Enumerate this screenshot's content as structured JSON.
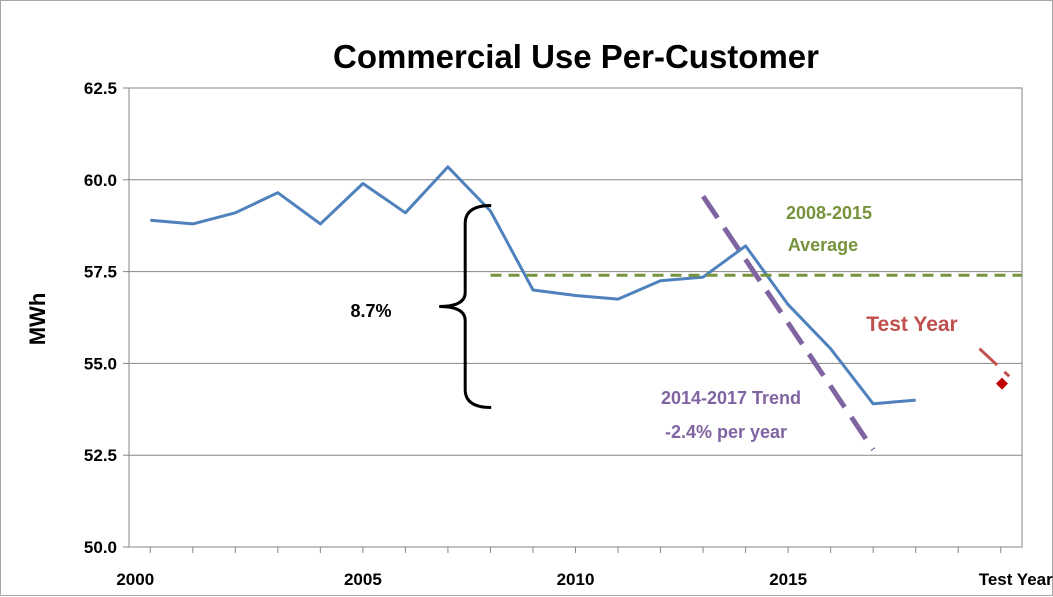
{
  "chart_data": {
    "type": "line",
    "title": "Commercial Use Per-Customer",
    "xlabel": "",
    "ylabel": "MWh",
    "ylim": [
      50.0,
      62.5
    ],
    "yticks": [
      "50.0",
      "52.5",
      "55.0",
      "57.5",
      "60.0",
      "62.5"
    ],
    "xticks": [
      "2000",
      "2005",
      "2010",
      "2015",
      "Test Year"
    ],
    "grid": "horizontal",
    "legend": "none",
    "colors": {
      "actual": "#4f81bd",
      "average": "#77933c",
      "trend": "#8064a2",
      "test_year": "#c0504d",
      "test_point": "#c00000"
    },
    "series": [
      {
        "key": "actual",
        "x": [
          2000,
          2001,
          2002,
          2003,
          2004,
          2005,
          2006,
          2007,
          2008,
          2009,
          2010,
          2011,
          2012,
          2013,
          2014,
          2015,
          2016,
          2017,
          2018
        ],
        "values": [
          58.9,
          58.8,
          59.1,
          59.65,
          58.8,
          59.9,
          59.1,
          60.35,
          59.15,
          57.0,
          56.85,
          56.75,
          57.25,
          57.35,
          58.2,
          56.6,
          55.4,
          53.9,
          54.0
        ]
      },
      {
        "key": "average",
        "x": [
          2008,
          2020.5
        ],
        "values": [
          57.4,
          57.4
        ]
      },
      {
        "key": "trend",
        "x": [
          2013,
          2017
        ],
        "values": [
          59.55,
          52.65
        ]
      },
      {
        "key": "test_year",
        "x": [
          2019.5,
          2020.2
        ],
        "values": [
          55.4,
          54.65
        ]
      }
    ],
    "test_point": {
      "x": 2020.5,
      "y": 54.45
    },
    "brace": {
      "x": 2007.5,
      "y_top": 59.3,
      "y_bottom": 53.8,
      "label": "8.7%"
    },
    "annotations": {
      "average_line1": "2008-2015",
      "average_line2": "Average",
      "test_year": "Test Year",
      "trend_line1": "2014-2017 Trend",
      "trend_line2": "-2.4% per year"
    }
  }
}
